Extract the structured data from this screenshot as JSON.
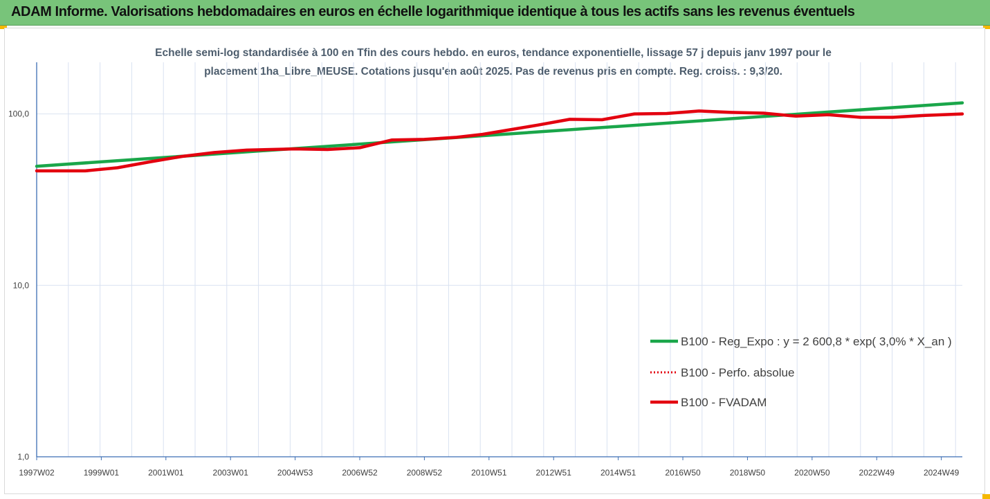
{
  "header": {
    "title": "ADAM Informe. Valorisations hebdomadaires en euros en échelle logarithmique identique à tous les actifs sans les revenus éventuels"
  },
  "colors": {
    "banner": "#78c47a",
    "accent_corner": "#f5b800",
    "regression": "#1aa64a",
    "fvadam": "#e3000f",
    "perfo": "#e3000f",
    "grid": "#d9e2f1"
  },
  "chart_data": {
    "type": "line",
    "title_line1": "Echelle semi-log standardisée à 100 en Tfin des cours hebdo. en euros, tendance exponentielle, lissage 57 j depuis janv 1997 pour le",
    "title_line2": "placement 1ha_Libre_MEUSE. Cotations jusqu'en août 2025. Pas de revenus pris en compte. Reg. croiss. : 9,3/20.",
    "y_scale": "log",
    "ylim": [
      1,
      200
    ],
    "y_ticks": [
      {
        "value": 1,
        "label": "1,0"
      },
      {
        "value": 10,
        "label": "10,0"
      },
      {
        "value": 100,
        "label": "100,0"
      }
    ],
    "xlim": [
      1997.0,
      2025.65
    ],
    "x_tick_labels": [
      "1997W02",
      "1999W01",
      "2001W01",
      "2003W01",
      "2004W53",
      "2006W52",
      "2008W52",
      "2010W51",
      "2012W51",
      "2014W51",
      "2016W50",
      "2018W50",
      "2020W50",
      "2022W49",
      "2024W49"
    ],
    "x_tick_years": [
      1997.0,
      1999.0,
      2001.0,
      2003.0,
      2005.0,
      2007.0,
      2009.0,
      2011.0,
      2013.0,
      2015.0,
      2017.0,
      2019.0,
      2021.0,
      2023.0,
      2025.0
    ],
    "legend_position": "right",
    "series": [
      {
        "name": "B100 - Reg_Expo : y = 2 600,8 * exp( 3,0% *  X_an )",
        "style": "solid",
        "color": "#1aa64a",
        "points": [
          [
            1997.0,
            49.5
          ],
          [
            2025.65,
            116.0
          ]
        ]
      },
      {
        "name": "B100 - Perfo. absolue",
        "style": "dotted",
        "color": "#e3000f",
        "points": [
          [
            1997.0,
            46.5
          ],
          [
            1998.5,
            46.5
          ],
          [
            1999.5,
            48.5
          ],
          [
            2000.5,
            52.5
          ],
          [
            2001.5,
            56.5
          ],
          [
            2002.5,
            59.5
          ],
          [
            2003.5,
            61.5
          ],
          [
            2005.0,
            62.5
          ],
          [
            2006.0,
            62.0
          ],
          [
            2007.0,
            63.5
          ],
          [
            2008.0,
            70.5
          ],
          [
            2009.0,
            71.0
          ],
          [
            2010.0,
            73.0
          ],
          [
            2010.8,
            76.0
          ],
          [
            2011.5,
            80.0
          ],
          [
            2012.5,
            86.0
          ],
          [
            2013.5,
            93.0
          ],
          [
            2014.5,
            92.5
          ],
          [
            2015.5,
            100.0
          ],
          [
            2016.5,
            100.5
          ],
          [
            2017.5,
            104.0
          ],
          [
            2018.5,
            102.0
          ],
          [
            2019.5,
            101.0
          ],
          [
            2020.5,
            97.0
          ],
          [
            2021.5,
            99.0
          ],
          [
            2022.5,
            95.5
          ],
          [
            2023.5,
            95.5
          ],
          [
            2024.5,
            98.0
          ],
          [
            2025.65,
            100.0
          ]
        ]
      },
      {
        "name": "B100 - FVADAM",
        "style": "solid",
        "color": "#e3000f",
        "points": [
          [
            1997.0,
            46.5
          ],
          [
            1998.5,
            46.5
          ],
          [
            1999.5,
            48.5
          ],
          [
            2000.5,
            52.5
          ],
          [
            2001.5,
            56.5
          ],
          [
            2002.5,
            59.5
          ],
          [
            2003.5,
            61.5
          ],
          [
            2005.0,
            62.5
          ],
          [
            2006.0,
            62.0
          ],
          [
            2007.0,
            63.5
          ],
          [
            2008.0,
            70.5
          ],
          [
            2009.0,
            71.0
          ],
          [
            2010.0,
            73.0
          ],
          [
            2010.8,
            76.0
          ],
          [
            2011.5,
            80.0
          ],
          [
            2012.5,
            86.0
          ],
          [
            2013.5,
            93.0
          ],
          [
            2014.5,
            92.5
          ],
          [
            2015.5,
            100.0
          ],
          [
            2016.5,
            100.5
          ],
          [
            2017.5,
            104.0
          ],
          [
            2018.5,
            102.0
          ],
          [
            2019.5,
            101.0
          ],
          [
            2020.5,
            97.0
          ],
          [
            2021.5,
            99.0
          ],
          [
            2022.5,
            95.5
          ],
          [
            2023.5,
            95.5
          ],
          [
            2024.5,
            98.0
          ],
          [
            2025.65,
            100.0
          ]
        ]
      }
    ]
  }
}
